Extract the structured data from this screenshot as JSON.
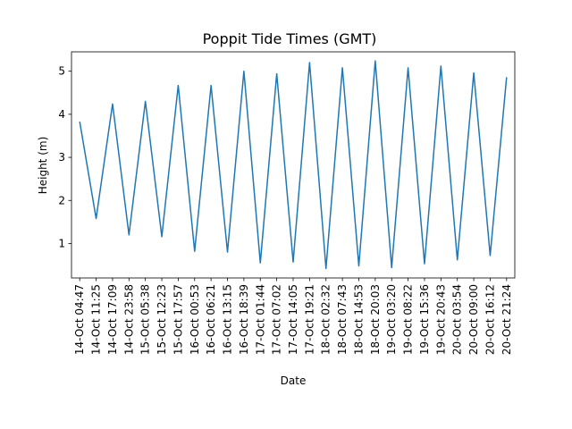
{
  "chart_data": {
    "type": "line",
    "title": "Poppit Tide Times (GMT)",
    "xlabel": "Date",
    "ylabel": "Height (m)",
    "x": [
      "14-Oct 04:47",
      "14-Oct 11:25",
      "14-Oct 17:09",
      "14-Oct 23:58",
      "15-Oct 05:38",
      "15-Oct 12:23",
      "15-Oct 17:57",
      "16-Oct 00:53",
      "16-Oct 06:21",
      "16-Oct 13:15",
      "16-Oct 18:39",
      "17-Oct 01:44",
      "17-Oct 07:02",
      "17-Oct 14:05",
      "17-Oct 19:21",
      "18-Oct 02:32",
      "18-Oct 07:43",
      "18-Oct 14:53",
      "18-Oct 20:03",
      "19-Oct 03:20",
      "19-Oct 08:22",
      "19-Oct 15:36",
      "19-Oct 20:43",
      "20-Oct 03:54",
      "20-Oct 09:00",
      "20-Oct 16:12",
      "20-Oct 21:24"
    ],
    "series": [
      {
        "values": [
          3.83,
          1.58,
          4.24,
          1.2,
          4.3,
          1.16,
          4.67,
          0.82,
          4.67,
          0.8,
          5.0,
          0.55,
          4.94,
          0.57,
          5.2,
          0.42,
          5.08,
          0.48,
          5.24,
          0.44,
          5.08,
          0.53,
          5.12,
          0.62,
          4.96,
          0.72,
          4.86
        ],
        "color": "#1f77b4"
      }
    ],
    "ylim": [
      0.2,
      5.45
    ],
    "yticks": [
      1,
      2,
      3,
      4,
      5
    ],
    "grid": false
  }
}
